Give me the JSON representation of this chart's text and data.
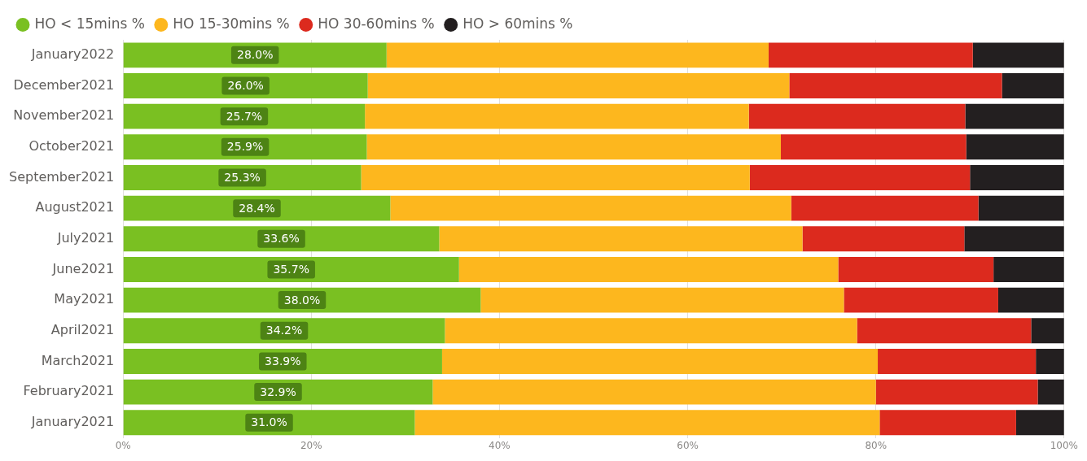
{
  "chart_data": {
    "type": "bar",
    "orientation": "horizontal",
    "stacked": true,
    "legend": "top left",
    "grid": "x",
    "marker": "circle",
    "categories": [
      "January2022",
      "December2021",
      "November2021",
      "October2021",
      "September2021",
      "August2021",
      "July2021",
      "June2021",
      "May2021",
      "April2021",
      "March2021",
      "February2021",
      "January2021"
    ],
    "xlim": [
      0,
      100
    ],
    "xticks": [
      {
        "value": 0,
        "label": "0%"
      },
      {
        "value": 20,
        "label": "20%"
      },
      {
        "value": 40,
        "label": "40%"
      },
      {
        "value": 60,
        "label": "60%"
      },
      {
        "value": 80,
        "label": "80%"
      },
      {
        "value": 100,
        "label": "100%"
      }
    ],
    "series": [
      {
        "name": "HO < 15mins %",
        "color": "#7ac022",
        "values": [
          28.0,
          26.0,
          25.7,
          25.9,
          25.3,
          28.4,
          33.6,
          35.7,
          38.0,
          34.2,
          33.9,
          32.9,
          31.0
        ],
        "value_labels": [
          "28.0%",
          "26.0%",
          "25.7%",
          "25.9%",
          "25.3%",
          "28.4%",
          "33.6%",
          "35.7%",
          "38.0%",
          "34.2%",
          "33.9%",
          "32.9%",
          "31.0%"
        ]
      },
      {
        "name": "HO 15-30mins %",
        "color": "#fdb71e",
        "values": [
          40.6,
          44.8,
          40.8,
          44.0,
          41.3,
          42.6,
          38.6,
          40.3,
          38.6,
          43.8,
          46.3,
          47.1,
          49.4
        ]
      },
      {
        "name": "HO 30-60mins %",
        "color": "#dc2a1e",
        "values": [
          21.7,
          22.6,
          23.0,
          19.7,
          23.4,
          19.9,
          17.2,
          16.5,
          16.4,
          18.5,
          16.8,
          17.2,
          14.5
        ]
      },
      {
        "name": "HO > 60mins %",
        "color": "#231f20",
        "values": [
          9.7,
          6.6,
          10.5,
          10.4,
          10.0,
          9.1,
          10.6,
          7.5,
          7.0,
          3.5,
          3.0,
          2.8,
          5.1
        ]
      }
    ]
  }
}
